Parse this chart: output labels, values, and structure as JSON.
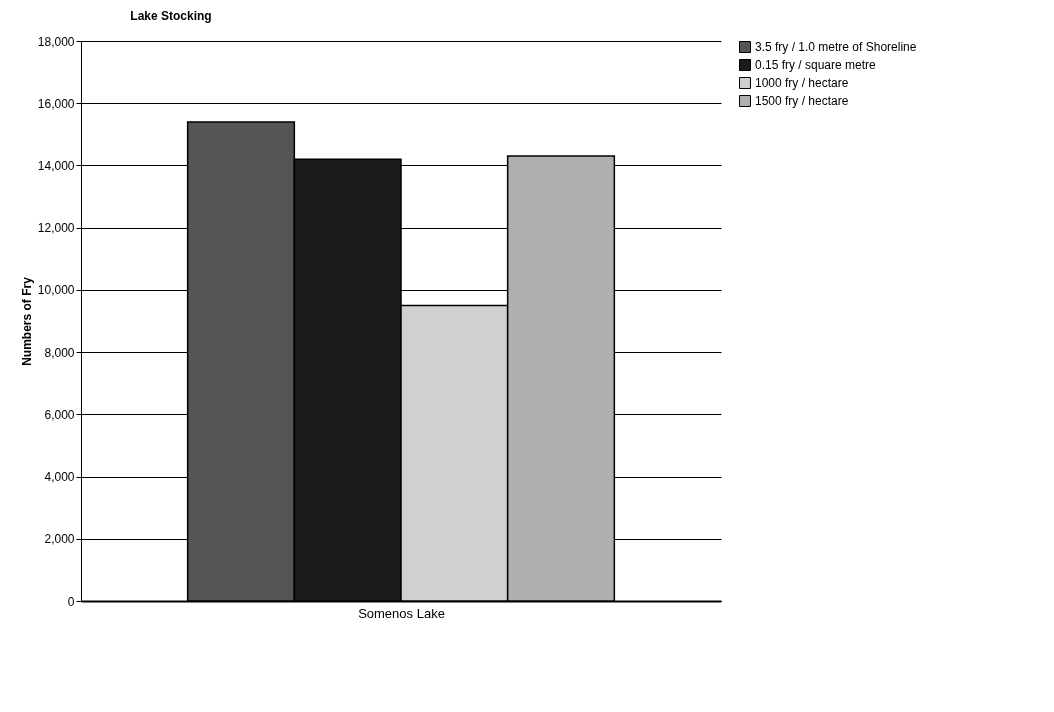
{
  "chart_data": {
    "type": "bar",
    "title": "Lake Stocking",
    "xlabel": "Somenos Lake",
    "ylabel": "Numbers of Fry",
    "categories": [
      null
    ],
    "series": [
      {
        "name": "3.5 fry / 1.0 metre of Shoreline",
        "color": "#555555",
        "values": [
          15400
        ]
      },
      {
        "name": "0.15 fry / square metre",
        "color": "#1a1a1a",
        "values": [
          14200
        ]
      },
      {
        "name": "1000 fry / hectare",
        "color": "#d0d0d0",
        "values": [
          9500
        ]
      },
      {
        "name": "1500 fry / hectare",
        "color": "#b0b0b0",
        "values": [
          14300
        ]
      }
    ],
    "ylim": [
      0,
      18000
    ],
    "yticks": [
      0,
      {
        "value": 2000,
        "label": "2,000"
      },
      {
        "value": 4000,
        "label": "4,000"
      },
      {
        "value": 6000,
        "label": "6,000"
      },
      {
        "value": 8000,
        "label": "8,000"
      },
      {
        "value": 10000,
        "label": "10,000"
      },
      {
        "value": 12000,
        "label": "12,000"
      },
      {
        "value": 14000,
        "label": "14,000"
      },
      {
        "value": 16000,
        "label": "16,000"
      },
      {
        "value": 18000,
        "label": "18,000"
      }
    ],
    "grid": "y",
    "legend": "top right"
  }
}
